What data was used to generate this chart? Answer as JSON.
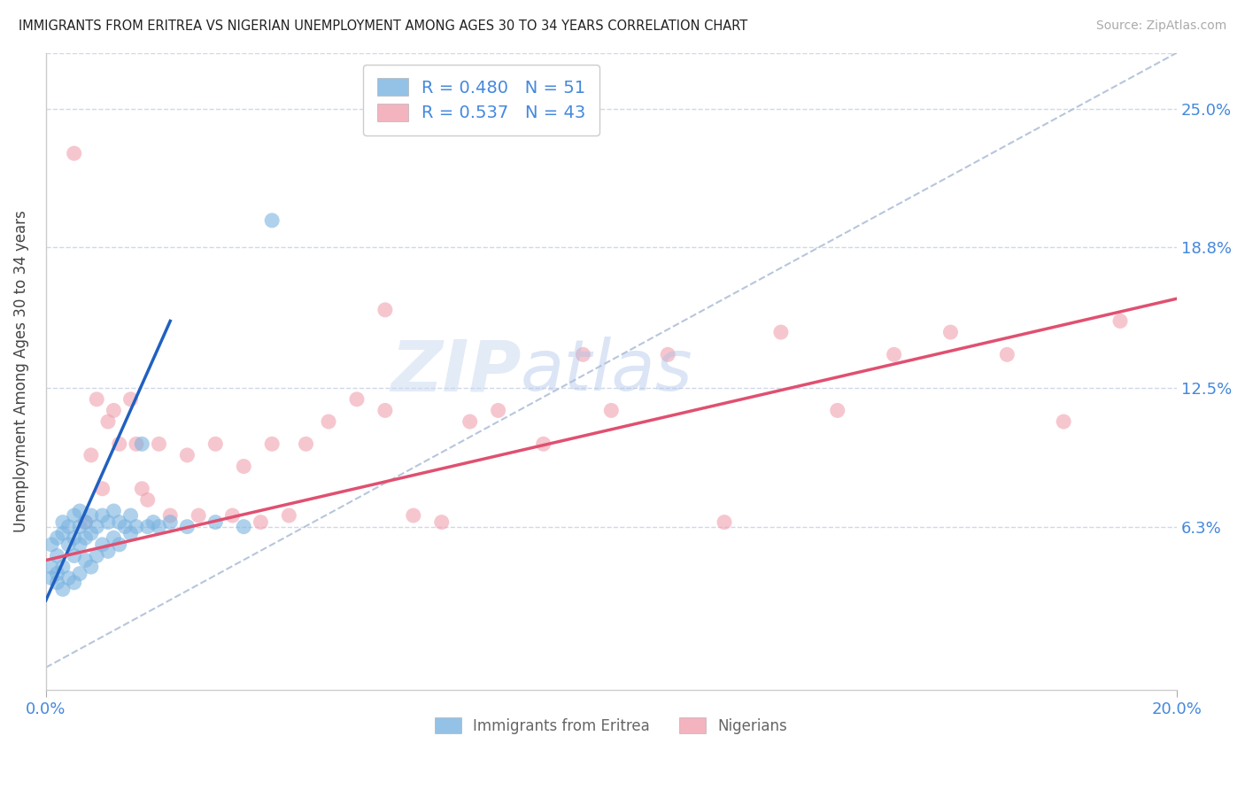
{
  "title": "IMMIGRANTS FROM ERITREA VS NIGERIAN UNEMPLOYMENT AMONG AGES 30 TO 34 YEARS CORRELATION CHART",
  "source": "Source: ZipAtlas.com",
  "ylabel": "Unemployment Among Ages 30 to 34 years",
  "xlabel_ticks_show": [
    "0.0%",
    "20.0%"
  ],
  "xlabel_vals_show": [
    0.0,
    0.2
  ],
  "ylabel_ticks": [
    "6.3%",
    "12.5%",
    "18.8%",
    "25.0%"
  ],
  "ylabel_vals": [
    0.063,
    0.125,
    0.188,
    0.25
  ],
  "xmin": 0.0,
  "xmax": 0.2,
  "ymin": -0.01,
  "ymax": 0.275,
  "legend_eritrea": "Immigrants from Eritrea",
  "legend_nigeria": "Nigerians",
  "R_eritrea": 0.48,
  "N_eritrea": 51,
  "R_nigeria": 0.537,
  "N_nigeria": 43,
  "color_eritrea": "#7ab3e0",
  "color_nigeria": "#f0a0b0",
  "color_line_eritrea": "#2060c0",
  "color_line_nigeria": "#e05070",
  "color_diagonal": "#b0c0d8",
  "color_axis_labels": "#4488dd",
  "color_grid": "#d0d8e8",
  "watermark_zip": "ZIP",
  "watermark_atlas": "atlas",
  "eritrea_x": [
    0.001,
    0.001,
    0.001,
    0.002,
    0.002,
    0.002,
    0.002,
    0.003,
    0.003,
    0.003,
    0.003,
    0.004,
    0.004,
    0.004,
    0.005,
    0.005,
    0.005,
    0.005,
    0.006,
    0.006,
    0.006,
    0.006,
    0.007,
    0.007,
    0.007,
    0.008,
    0.008,
    0.008,
    0.009,
    0.009,
    0.01,
    0.01,
    0.011,
    0.011,
    0.012,
    0.012,
    0.013,
    0.013,
    0.014,
    0.015,
    0.015,
    0.016,
    0.017,
    0.018,
    0.019,
    0.02,
    0.022,
    0.025,
    0.03,
    0.035,
    0.04
  ],
  "eritrea_y": [
    0.04,
    0.045,
    0.055,
    0.038,
    0.042,
    0.05,
    0.058,
    0.035,
    0.045,
    0.06,
    0.065,
    0.04,
    0.055,
    0.063,
    0.038,
    0.05,
    0.058,
    0.068,
    0.042,
    0.055,
    0.063,
    0.07,
    0.048,
    0.058,
    0.065,
    0.045,
    0.06,
    0.068,
    0.05,
    0.063,
    0.055,
    0.068,
    0.052,
    0.065,
    0.058,
    0.07,
    0.055,
    0.065,
    0.063,
    0.06,
    0.068,
    0.063,
    0.1,
    0.063,
    0.065,
    0.063,
    0.065,
    0.063,
    0.065,
    0.063,
    0.2
  ],
  "nigeria_x": [
    0.005,
    0.007,
    0.008,
    0.009,
    0.01,
    0.011,
    0.012,
    0.013,
    0.015,
    0.016,
    0.017,
    0.018,
    0.02,
    0.022,
    0.025,
    0.027,
    0.03,
    0.033,
    0.035,
    0.038,
    0.04,
    0.043,
    0.046,
    0.05,
    0.055,
    0.06,
    0.065,
    0.07,
    0.075,
    0.08,
    0.088,
    0.095,
    0.1,
    0.11,
    0.12,
    0.13,
    0.14,
    0.15,
    0.16,
    0.17,
    0.18,
    0.19,
    0.06
  ],
  "nigeria_y": [
    0.23,
    0.065,
    0.095,
    0.12,
    0.08,
    0.11,
    0.115,
    0.1,
    0.12,
    0.1,
    0.08,
    0.075,
    0.1,
    0.068,
    0.095,
    0.068,
    0.1,
    0.068,
    0.09,
    0.065,
    0.1,
    0.068,
    0.1,
    0.11,
    0.12,
    0.115,
    0.068,
    0.065,
    0.11,
    0.115,
    0.1,
    0.14,
    0.115,
    0.14,
    0.065,
    0.15,
    0.115,
    0.14,
    0.15,
    0.14,
    0.11,
    0.155,
    0.16
  ],
  "eritrea_line_x": [
    0.0,
    0.022
  ],
  "eritrea_line_y": [
    0.03,
    0.155
  ],
  "nigeria_line_x": [
    0.0,
    0.2
  ],
  "nigeria_line_y": [
    0.048,
    0.165
  ]
}
